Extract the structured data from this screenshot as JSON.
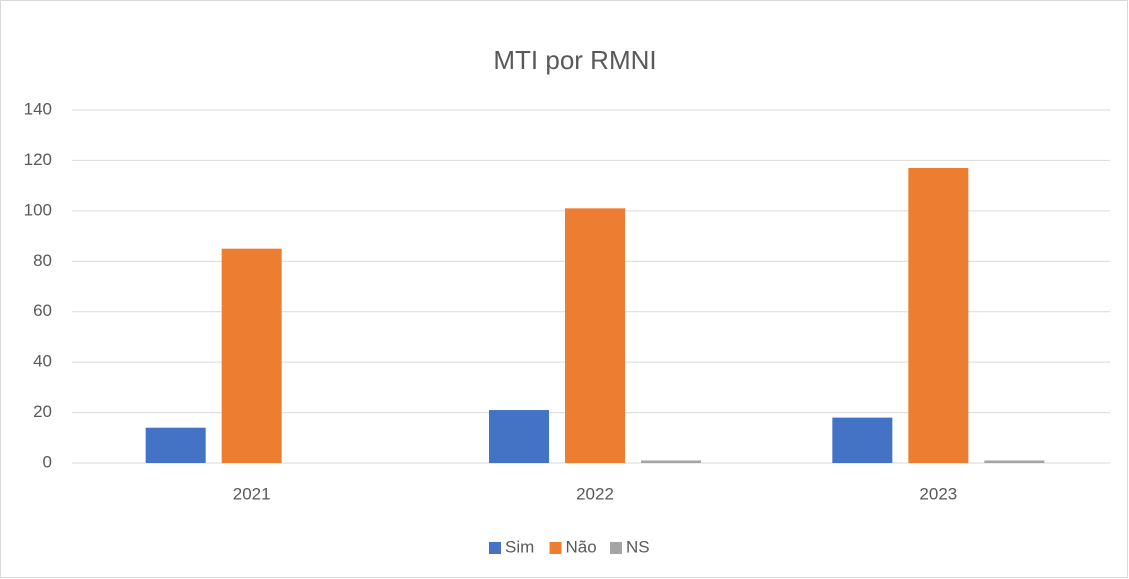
{
  "chart_data": {
    "type": "bar",
    "title": "MTI por RMNI",
    "categories": [
      "2021",
      "2022",
      "2023"
    ],
    "series": [
      {
        "name": "Sim",
        "color": "#4472c4",
        "values": [
          14,
          21,
          18
        ]
      },
      {
        "name": "Não",
        "color": "#ed7d31",
        "values": [
          85,
          101,
          117
        ]
      },
      {
        "name": "NS",
        "color": "#a5a5a5",
        "values": [
          0,
          1,
          1
        ]
      }
    ],
    "ylim": [
      0,
      140
    ],
    "yticks": [
      0,
      20,
      40,
      60,
      80,
      100,
      120,
      140
    ],
    "grid": true,
    "legend": "bottom"
  }
}
